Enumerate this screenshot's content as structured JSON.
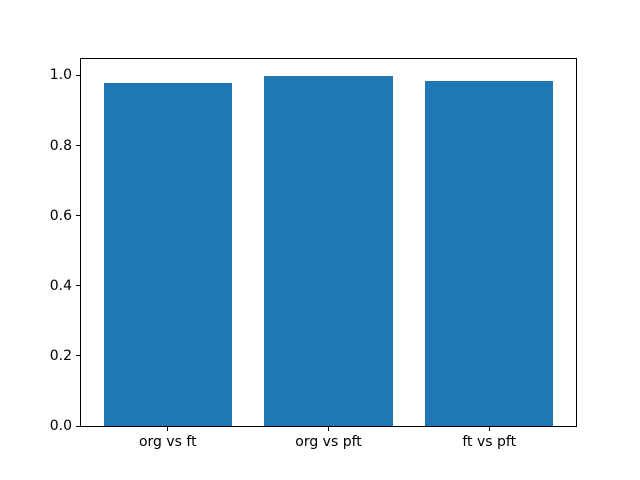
{
  "figure": {
    "background": "#ffffff"
  },
  "chart_data": {
    "type": "bar",
    "categories": [
      "org vs ft",
      "org vs pft",
      "ft vs pft"
    ],
    "values": [
      0.98,
      0.998,
      0.983
    ],
    "bar_color": "#1f77b4",
    "ylim": [
      0,
      1.047
    ],
    "yticks": [
      0.0,
      0.2,
      0.4,
      0.6,
      0.8,
      1.0
    ],
    "ytick_labels": [
      "0.0",
      "0.2",
      "0.4",
      "0.6",
      "0.8",
      "1.0"
    ],
    "bar_width_fraction": 0.8,
    "x_margin_fraction": 0.14,
    "grid": false,
    "legend": "none"
  }
}
